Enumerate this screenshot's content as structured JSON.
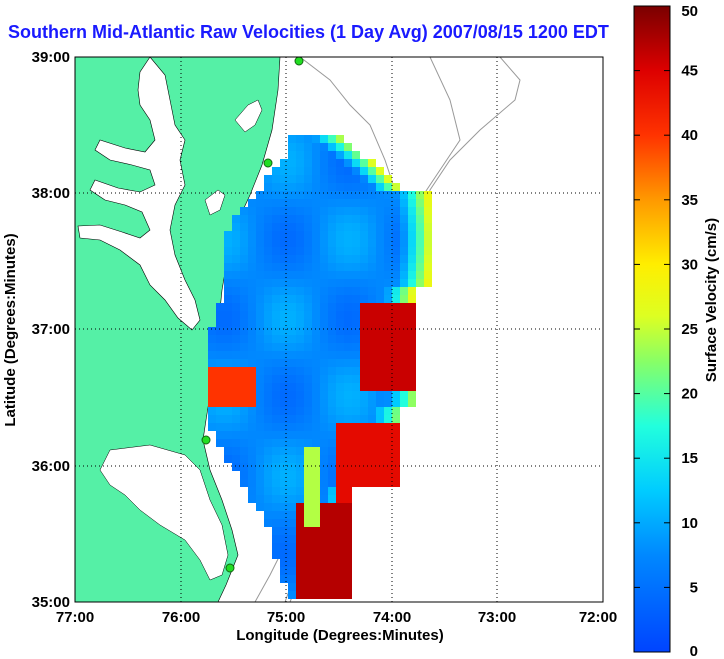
{
  "title": "Southern Mid-Atlantic Raw Velocities (1 Day Avg) 2007/08/15 1200 EDT",
  "map": {
    "xlabel": "Longitude (Degrees:Minutes)",
    "ylabel": "Latitude (Degrees:Minutes)",
    "x_ticks": [
      "77:00",
      "76:00",
      "75:00",
      "74:00",
      "73:00",
      "72:00"
    ],
    "y_ticks": [
      "39:00",
      "38:00",
      "37:00",
      "36:00",
      "35:00"
    ],
    "x_range": [
      "77:00 W",
      "72:00 W"
    ],
    "y_range": [
      "35:00 N",
      "39:00 N"
    ],
    "grid": "dotted",
    "land_color": "#55f0a6",
    "water_color": "#ffffff",
    "vector_color": "#000000",
    "site_marker_color": "#22dd22"
  },
  "colorbar": {
    "label": "Surface Velocity (cm/s)",
    "ticks": [
      "50",
      "45",
      "40",
      "35",
      "30",
      "25",
      "20",
      "15",
      "10",
      "5",
      "0"
    ],
    "range": [
      0,
      50
    ],
    "colormap": "jet"
  }
}
